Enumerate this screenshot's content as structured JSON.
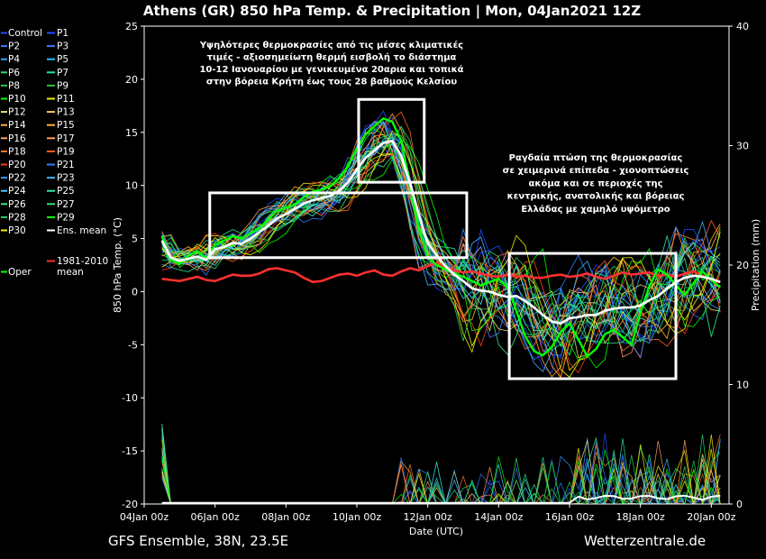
{
  "chart_data": {
    "type": "line",
    "title": "Athens  (GR)  850 hPa Temp. & Precipitation | Mon, 04Jan2021 12Z",
    "xlabel": "Date (UTC)",
    "ylabel": "850 hPa Temp. (°C)",
    "y2label": "Precipitation (mm)",
    "ylim": [
      -20,
      25
    ],
    "y2lim": [
      0,
      40
    ],
    "xlim": [
      "2021-01-04T00:00",
      "2021-01-20T12:00"
    ],
    "x_ticks": [
      "04Jan 00z",
      "06Jan 00z",
      "08Jan 00z",
      "10Jan 00z",
      "12Jan 00z",
      "14Jan 00z",
      "16Jan 00z",
      "18Jan 00z",
      "20Jan 00z"
    ],
    "y_ticks": [
      25,
      20,
      15,
      10,
      5,
      0,
      -5,
      -10,
      -15,
      -20
    ],
    "y2_ticks": [
      40,
      30,
      20,
      10,
      0
    ],
    "x_days": [
      0.5,
      0.75,
      1,
      1.25,
      1.5,
      1.75,
      2,
      2.25,
      2.5,
      2.75,
      3,
      3.25,
      3.5,
      3.75,
      4,
      4.25,
      4.5,
      4.75,
      5,
      5.25,
      5.5,
      5.75,
      6,
      6.25,
      6.5,
      6.75,
      7,
      7.25,
      7.5,
      7.75,
      8,
      8.25,
      8.5,
      8.75,
      9,
      9.25,
      9.5,
      9.75,
      10,
      10.25,
      10.5,
      10.75,
      11,
      11.25,
      11.5,
      11.75,
      12,
      12.25,
      12.5,
      12.75,
      13,
      13.25,
      13.5,
      13.75,
      14,
      14.25,
      14.5,
      14.75,
      15,
      15.25,
      15.5,
      15.75,
      16,
      16.25
    ],
    "ensemble_mean": [
      4.8,
      3.2,
      2.9,
      3.1,
      3.3,
      3.0,
      4.0,
      4.2,
      4.6,
      4.5,
      5.0,
      5.6,
      6.2,
      6.9,
      7.3,
      7.8,
      8.3,
      8.6,
      8.8,
      9.0,
      9.5,
      10.3,
      11.5,
      12.6,
      13.3,
      14.0,
      14.2,
      12.8,
      10.2,
      7.2,
      4.6,
      3.4,
      2.4,
      1.6,
      1.0,
      0.3,
      0.1,
      0.0,
      -0.3,
      -0.5,
      -0.4,
      -0.9,
      -1.5,
      -2.2,
      -2.8,
      -3.0,
      -2.5,
      -2.4,
      -2.2,
      -2.2,
      -1.8,
      -1.6,
      -1.5,
      -1.5,
      -1.3,
      -0.8,
      -0.4,
      0.3,
      0.9,
      1.3,
      1.5,
      1.4,
      1.2,
      0.9
    ],
    "climatology_1981_2010": [
      1.2,
      1.1,
      1.0,
      1.2,
      1.4,
      1.1,
      1.0,
      1.3,
      1.6,
      1.5,
      1.5,
      1.7,
      2.1,
      2.2,
      2.0,
      1.8,
      1.3,
      0.9,
      1.0,
      1.3,
      1.6,
      1.7,
      1.5,
      1.8,
      2.0,
      1.6,
      1.5,
      1.9,
      2.2,
      2.0,
      2.4,
      2.7,
      2.3,
      2.0,
      1.8,
      1.9,
      1.7,
      1.5,
      1.4,
      1.6,
      1.4,
      1.5,
      1.3,
      1.3,
      1.5,
      1.6,
      1.4,
      1.5,
      1.7,
      1.4,
      1.2,
      1.5,
      1.8,
      1.6,
      1.7,
      1.8,
      1.5,
      1.6,
      1.4,
      1.7,
      1.9,
      1.5,
      1.1,
      0.9
    ],
    "operational": [
      5.2,
      3.0,
      2.6,
      3.4,
      3.8,
      3.1,
      4.4,
      4.8,
      5.2,
      5.0,
      5.5,
      6.0,
      6.8,
      7.6,
      7.9,
      8.2,
      8.9,
      9.4,
      9.6,
      9.9,
      10.7,
      11.8,
      13.5,
      14.8,
      15.6,
      16.3,
      16.0,
      14.2,
      10.1,
      6.0,
      3.2,
      2.5,
      2.1,
      1.7,
      1.4,
      1.0,
      0.6,
      0.9,
      1.2,
      0.4,
      -1.8,
      -4.2,
      -5.6,
      -6.0,
      -5.2,
      -3.8,
      -3.0,
      -4.5,
      -6.1,
      -5.4,
      -4.0,
      -3.6,
      -4.3,
      -5.0,
      -2.0,
      0.5,
      2.1,
      1.6,
      0.6,
      -0.3,
      0.8,
      1.9,
      1.1,
      0.4
    ],
    "annotations": [
      "Υψηλότερες θερμοκρασίες από τις μέσες κλιματικές τιμές - αξιοσημείωτη θερμή εισβολή το διάστημα 10-12 Ιανουαρίου με γενικευμένα 20αρια και τοπικά στην βόρεια Κρήτη έως τους 28 βαθμούς Κελσίου",
      "Ραγδαία πτώση της θερμοκρασίας σε χειμερινά επίπεδα - χιονοπτώσεις ακόμα και σε περιοχές της κεντρικής, ανατολικής και βόρειας Ελλάδας με χαμηλό υψόμετρο"
    ],
    "legend_placement": "left-outside",
    "grid": false
  },
  "header": {
    "title": "Athens  (GR)  850 hPa Temp. & Precipitation | Mon, 04Jan2021 12Z"
  },
  "legend": {
    "left": [
      {
        "label": "Control",
        "color": "#1e4bff"
      },
      {
        "label": "P2",
        "color": "#3a78ff"
      },
      {
        "label": "P4",
        "color": "#22a7ff"
      },
      {
        "label": "P6",
        "color": "#22e06a"
      },
      {
        "label": "P8",
        "color": "#28c850"
      },
      {
        "label": "P10",
        "color": "#00ff00"
      },
      {
        "label": "P12",
        "color": "#f0e070"
      },
      {
        "label": "P14",
        "color": "#ffb030"
      },
      {
        "label": "P16",
        "color": "#ff9a60"
      },
      {
        "label": "P18",
        "color": "#ff7a30"
      },
      {
        "label": "P20",
        "color": "#ff3a20"
      },
      {
        "label": "P22",
        "color": "#2f9bff"
      },
      {
        "label": "P24",
        "color": "#40d0ff"
      },
      {
        "label": "P26",
        "color": "#30e890"
      },
      {
        "label": "P28",
        "color": "#22d060"
      },
      {
        "label": "P30",
        "color": "#f0f000"
      }
    ],
    "right": [
      {
        "label": "P1",
        "color": "#1e4bff"
      },
      {
        "label": "P3",
        "color": "#3a78ff"
      },
      {
        "label": "P5",
        "color": "#22c0ff"
      },
      {
        "label": "P7",
        "color": "#22e0a0"
      },
      {
        "label": "P9",
        "color": "#30c040"
      },
      {
        "label": "P11",
        "color": "#f0f000"
      },
      {
        "label": "P13",
        "color": "#f0d060"
      },
      {
        "label": "P15",
        "color": "#ffb030"
      },
      {
        "label": "P17",
        "color": "#ff9a60"
      },
      {
        "label": "P19",
        "color": "#ff6020"
      },
      {
        "label": "P21",
        "color": "#2f7fff"
      },
      {
        "label": "P23",
        "color": "#40b0ff"
      },
      {
        "label": "P25",
        "color": "#30e8a0"
      },
      {
        "label": "P27",
        "color": "#30e070"
      },
      {
        "label": "P29",
        "color": "#00ff00"
      },
      {
        "label": "Ens. mean",
        "color": "#ffffff"
      }
    ],
    "oper": {
      "label": "Oper",
      "color": "#00ff00"
    },
    "clim": {
      "label_line1": "1981-2010",
      "label_line2": "mean",
      "color": "#ff3030"
    }
  },
  "annotation_top": {
    "lines": [
      "Υψηλότερες θερμοκρασίες από τις μέσες κλιματικές",
      "τιμές - αξιοσημείωτη θερμή εισβολή το διάστημα",
      "10-12 Ιανουαρίου με γενικευμένα 20αρια και τοπικά",
      "στην βόρεια Κρήτη έως τους 28 βαθμούς Κελσίου"
    ]
  },
  "annotation_right": {
    "lines": [
      "Ραγδαία πτώση της θερμοκρασίας",
      "σε χειμερινά επίπεδα - χιονοπτώσεις",
      "ακόμα και σε περιοχές της",
      "κεντρικής, ανατολικής και βόρειας",
      "Ελλάδας με χαμηλό υψόμετρο"
    ]
  },
  "footer": {
    "left": "GFS Ensemble, 38N, 23.5E",
    "right": "Wetterzentrale.de"
  }
}
